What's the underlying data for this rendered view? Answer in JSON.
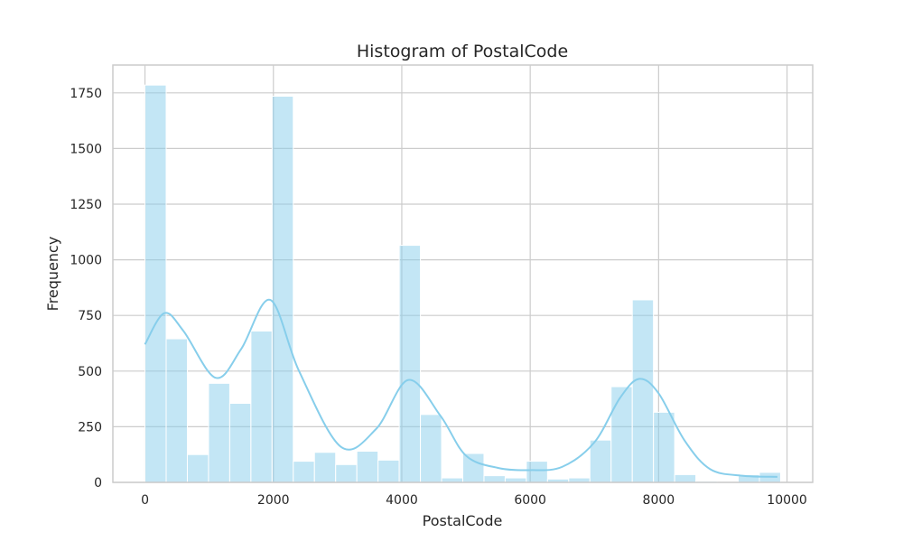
{
  "chart_data": {
    "type": "histogram",
    "title": "Histogram of PostalCode",
    "xlabel": "PostalCode",
    "ylabel": "Frequency",
    "xlim": [
      -500,
      10400
    ],
    "ylim": [
      0,
      1875
    ],
    "xticks": [
      0,
      2000,
      4000,
      6000,
      8000,
      10000
    ],
    "yticks": [
      0,
      250,
      500,
      750,
      1000,
      1250,
      1500,
      1750
    ],
    "grid": true,
    "bar_color": "#87ceeb",
    "bin_edges": [
      0,
      330,
      660,
      990,
      1320,
      1650,
      1980,
      2310,
      2640,
      2970,
      3300,
      3630,
      3960,
      4290,
      4620,
      4950,
      5280,
      5610,
      5940,
      6270,
      6600,
      6930,
      7260,
      7590,
      7920,
      8250,
      8580,
      8910,
      9240,
      9570,
      9900
    ],
    "counts": [
      1785,
      645,
      125,
      445,
      355,
      680,
      1735,
      95,
      135,
      80,
      140,
      100,
      1065,
      305,
      20,
      130,
      30,
      20,
      95,
      15,
      20,
      190,
      430,
      820,
      315,
      35,
      5,
      0,
      35,
      45
    ],
    "kde": {
      "x": [
        0,
        300,
        600,
        1100,
        1500,
        1950,
        2400,
        3050,
        3600,
        4100,
        4600,
        5000,
        5500,
        6000,
        6500,
        7000,
        7400,
        7700,
        8000,
        8400,
        8800,
        9300,
        9850
      ],
      "y": [
        620,
        760,
        680,
        470,
        600,
        820,
        500,
        160,
        240,
        460,
        300,
        120,
        65,
        55,
        70,
        180,
        380,
        465,
        400,
        190,
        60,
        30,
        25
      ]
    }
  }
}
